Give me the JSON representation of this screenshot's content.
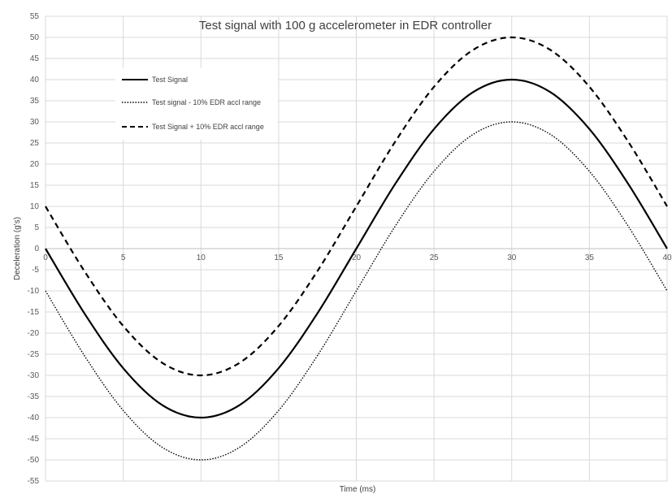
{
  "chart_data": {
    "type": "line",
    "title": "Test signal with 100 g accelerometer in EDR controller",
    "xlabel": "Time (ms)",
    "ylabel": "Deceleration (g's)",
    "xlim": [
      0,
      40
    ],
    "ylim": [
      -55,
      55
    ],
    "xticks": [
      0,
      5,
      10,
      15,
      20,
      25,
      30,
      35,
      40
    ],
    "yticks": [
      55,
      50,
      45,
      40,
      35,
      30,
      25,
      20,
      15,
      10,
      5,
      0,
      -5,
      -10,
      -15,
      -20,
      -25,
      -30,
      -35,
      -40,
      -45,
      -50,
      -55
    ],
    "grid": true,
    "legend_position": "top-left",
    "x": [
      0,
      2.5,
      5,
      7.5,
      10,
      12.5,
      15,
      17.5,
      20,
      22.5,
      25,
      27.5,
      30,
      32.5,
      35,
      37.5,
      40
    ],
    "series": [
      {
        "name": "Test Signal",
        "style": "solid",
        "color": "#000000",
        "values": [
          0,
          -15.3,
          -28.3,
          -37.0,
          -40,
          -37.0,
          -28.3,
          -15.3,
          0,
          15.3,
          28.3,
          37.0,
          40,
          37.0,
          28.3,
          15.3,
          0
        ]
      },
      {
        "name": "Test signal - 10% EDR accl range",
        "style": "dotted",
        "color": "#000000",
        "values": [
          -10,
          -25.3,
          -38.3,
          -47.0,
          -50,
          -47.0,
          -38.3,
          -25.3,
          -10,
          5.3,
          18.3,
          27.0,
          30,
          27.0,
          18.3,
          5.3,
          -10
        ]
      },
      {
        "name": "Test Signal + 10% EDR accl range",
        "style": "dashed",
        "color": "#000000",
        "values": [
          10,
          -5.3,
          -18.3,
          -27.0,
          -30,
          -27.0,
          -18.3,
          -5.3,
          10,
          25.3,
          38.3,
          47.0,
          50,
          47.0,
          38.3,
          25.3,
          10
        ]
      }
    ]
  }
}
